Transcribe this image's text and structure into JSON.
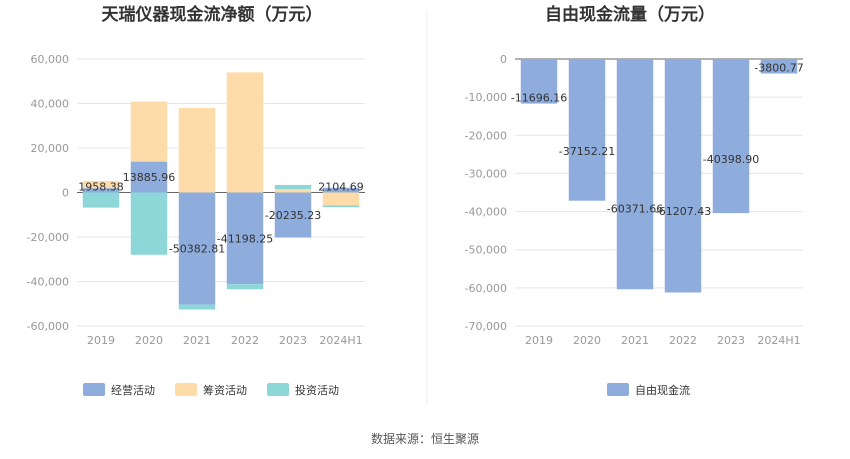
{
  "source": "数据来源：恒生聚源",
  "chart_data": [
    {
      "type": "bar",
      "stacked": true,
      "title": "天瑞仪器现金流净额（万元）",
      "categories": [
        "2019",
        "2020",
        "2021",
        "2022",
        "2023",
        "2024H1"
      ],
      "ylim": [
        -60000,
        60000
      ],
      "yticks": [
        60000,
        40000,
        20000,
        0,
        -20000,
        -40000,
        -60000
      ],
      "ytick_labels": [
        "60,000",
        "40,000",
        "20,000",
        "0",
        "-20,000",
        "-40,000",
        "-60,000"
      ],
      "grid": true,
      "legend_position": "bottom",
      "series": [
        {
          "name": "经营活动",
          "color": "#8eacdc",
          "values": [
            1958.38,
            13885.96,
            -50382.81,
            -41198.25,
            -20235.23,
            2104.69
          ]
        },
        {
          "name": "筹资活动",
          "color": "#fddcaa",
          "values": [
            3200,
            27000,
            38000,
            54000,
            1500,
            -5800
          ]
        },
        {
          "name": "投资活动",
          "color": "#8dd7d9",
          "values": [
            -6800,
            -28000,
            -2200,
            -2300,
            1900,
            -800
          ]
        }
      ],
      "data_labels": [
        "1958.38",
        "13885.96",
        "-50382.81",
        "-41198.25",
        "-20235.23",
        "2104.69"
      ]
    },
    {
      "type": "bar",
      "title": "自由现金流量（万元）",
      "categories": [
        "2019",
        "2020",
        "2021",
        "2022",
        "2023",
        "2024H1"
      ],
      "ylim": [
        -70000,
        0
      ],
      "yticks": [
        0,
        -10000,
        -20000,
        -30000,
        -40000,
        -50000,
        -60000,
        -70000
      ],
      "ytick_labels": [
        "0",
        "-10,000",
        "-20,000",
        "-30,000",
        "-40,000",
        "-50,000",
        "-60,000",
        "-70,000"
      ],
      "grid": true,
      "legend_position": "bottom",
      "series": [
        {
          "name": "自由现金流",
          "color": "#8eacdc",
          "values": [
            -11696.16,
            -37152.21,
            -60371.66,
            -61207.43,
            -40398.9,
            -3800.77
          ]
        }
      ],
      "data_labels": [
        "-11696.16",
        "-37152.21",
        "-60371.66",
        "-61207.43",
        "-40398.90",
        "-3800.77"
      ]
    }
  ]
}
